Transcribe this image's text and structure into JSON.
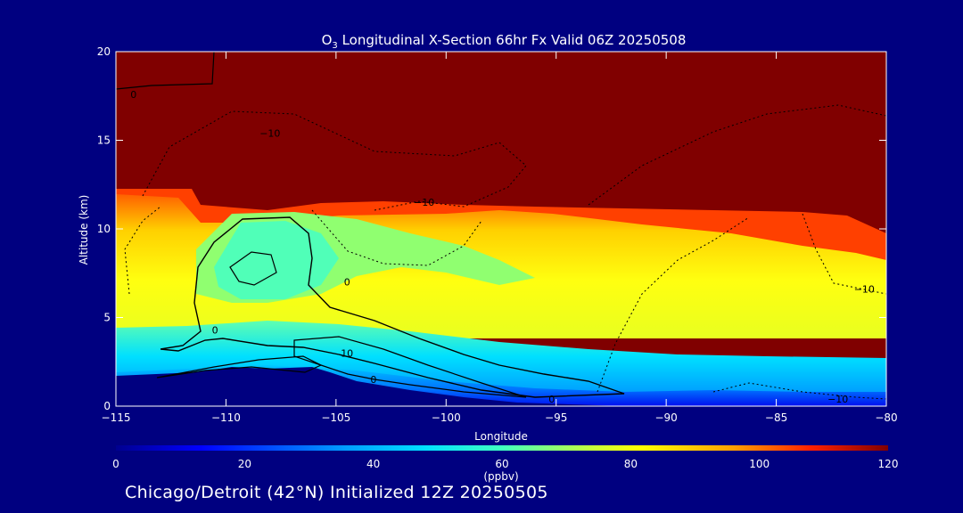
{
  "chart_data": {
    "type": "heatmap",
    "title_parts": {
      "species": "O",
      "subscript": "3",
      "rest": " Longitudinal X-Section 66hr  Fx Valid 06Z 20250508"
    },
    "xlabel": "Longitude",
    "ylabel": "Altitude (km)",
    "xlim": [
      -115,
      -80
    ],
    "ylim": [
      0,
      20
    ],
    "x_ticks": [
      -115,
      -110,
      -105,
      -100,
      -95,
      -90,
      -85,
      -80
    ],
    "x_tick_labels": [
      "−115",
      "−110",
      "−105",
      "−100",
      "−95",
      "−90",
      "−85",
      "−80"
    ],
    "y_ticks": [
      0,
      5,
      10,
      15,
      20
    ],
    "y_tick_labels": [
      "0",
      "5",
      "10",
      "15",
      "20"
    ],
    "colorbar": {
      "min": 0,
      "max": 120,
      "ticks": [
        0,
        20,
        40,
        60,
        80,
        100,
        120
      ],
      "tick_labels": [
        "0",
        "20",
        "40",
        "60",
        "80",
        "100",
        "120"
      ],
      "unit": "(ppbv)"
    },
    "contour_labels": [
      {
        "text": "0",
        "lon": -114.2,
        "alt": 17.6
      },
      {
        "text": "−10",
        "lon": -108.0,
        "alt": 15.4
      },
      {
        "text": "−10",
        "lon": -101.0,
        "alt": 11.5
      },
      {
        "text": "0",
        "lon": -104.5,
        "alt": 7.0
      },
      {
        "text": "0",
        "lon": -110.5,
        "alt": 4.3
      },
      {
        "text": "10",
        "lon": -104.5,
        "alt": 3.0
      },
      {
        "text": "0",
        "lon": -103.3,
        "alt": 1.5
      },
      {
        "text": "0",
        "lon": -95.2,
        "alt": 0.4
      },
      {
        "text": "−10",
        "lon": -81.0,
        "alt": 6.6
      },
      {
        "text": "−10",
        "lon": -82.2,
        "alt": 0.4
      }
    ]
  },
  "footer": "Chicago/Detroit (42°N) Initialized 12Z 20250505"
}
